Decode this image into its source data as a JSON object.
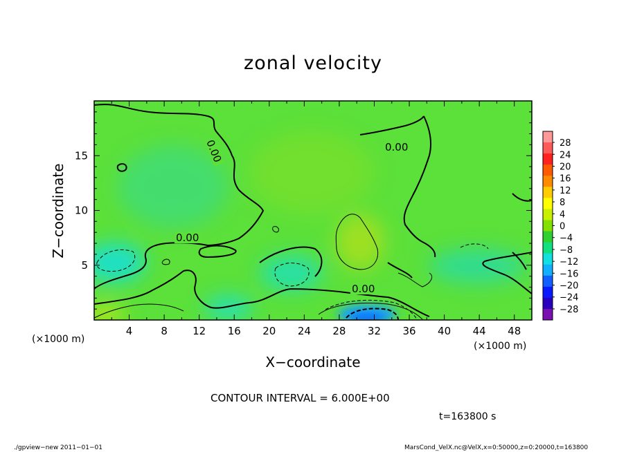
{
  "chart_data": {
    "type": "heatmap",
    "title": "zonal velocity",
    "xlabel": "X−coordinate",
    "ylabel": "Z−coordinate",
    "x_unit_label": "(×1000 m)",
    "xlim": [
      0,
      50
    ],
    "ylim": [
      0,
      20
    ],
    "x_ticks": [
      "4",
      "8",
      "12",
      "16",
      "20",
      "24",
      "28",
      "32",
      "36",
      "40",
      "44",
      "48"
    ],
    "x_tick_values": [
      4,
      8,
      12,
      16,
      20,
      24,
      28,
      32,
      36,
      40,
      44,
      48
    ],
    "y_ticks": [
      "5",
      "10",
      "15"
    ],
    "y_tick_values": [
      5,
      10,
      15
    ],
    "colorbar": {
      "labels": [
        "28",
        "24",
        "20",
        "16",
        "12",
        "8",
        "4",
        "0",
        "−4",
        "−8",
        "−12",
        "−16",
        "−20",
        "−24",
        "−28"
      ],
      "colors": [
        "#ff9999",
        "#ff5a5a",
        "#ff2020",
        "#ff5a00",
        "#ff8c00",
        "#ffcc00",
        "#ffff00",
        "#c8f000",
        "#84e000",
        "#30d030",
        "#10e080",
        "#10e0e0",
        "#10b0ff",
        "#1060ff",
        "#0a1aff",
        "#2a00c0",
        "#7a10b0"
      ]
    },
    "contour_labels": [
      "0.00",
      "0.00",
      "0.00",
      "0.00"
    ],
    "contour_interval": "CONTOUR INTERVAL = 6.000E+00",
    "time": "t=163800 s"
  },
  "footer": {
    "left": "./gpview−new   2011−01−01",
    "right": "MarsCond_VelX.nc@VelX,x=0:50000,z=0:20000,t=163800"
  }
}
